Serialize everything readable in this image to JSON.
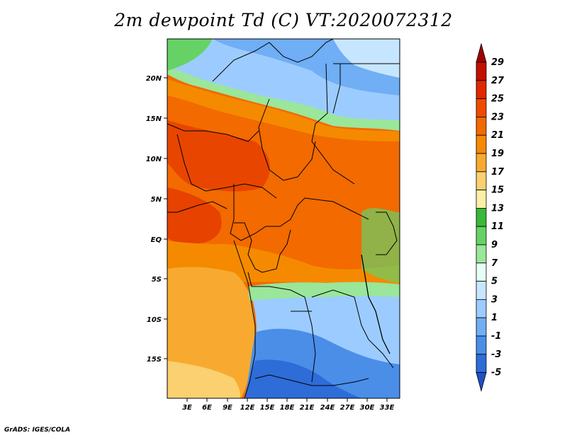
{
  "title": "2m dewpoint Td (C) VT:2020072312",
  "credit": "GrADS: IGES/COLA",
  "lat_labels": [
    "20N",
    "15N",
    "10N",
    "5N",
    "EQ",
    "5S",
    "10S",
    "15S"
  ],
  "lon_labels": [
    "3E",
    "6E",
    "9E",
    "12E",
    "15E",
    "18E",
    "21E",
    "24E",
    "27E",
    "30E",
    "33E"
  ],
  "colorbar": {
    "labels": [
      "29",
      "27",
      "25",
      "23",
      "21",
      "19",
      "17",
      "15",
      "13",
      "11",
      "9",
      "7",
      "5",
      "3",
      "1",
      "-1",
      "-3",
      "-5"
    ],
    "colors": [
      "#a00000",
      "#c01000",
      "#e02800",
      "#f04a00",
      "#f26a00",
      "#f58a00",
      "#f8aa30",
      "#fad070",
      "#fcf0a8",
      "#3ab83a",
      "#66d266",
      "#9ae69a",
      "#e6fff4",
      "#c6e6ff",
      "#9cccff",
      "#70aef5",
      "#4a8ee8",
      "#2e6cd8",
      "#1e50c4"
    ]
  }
}
